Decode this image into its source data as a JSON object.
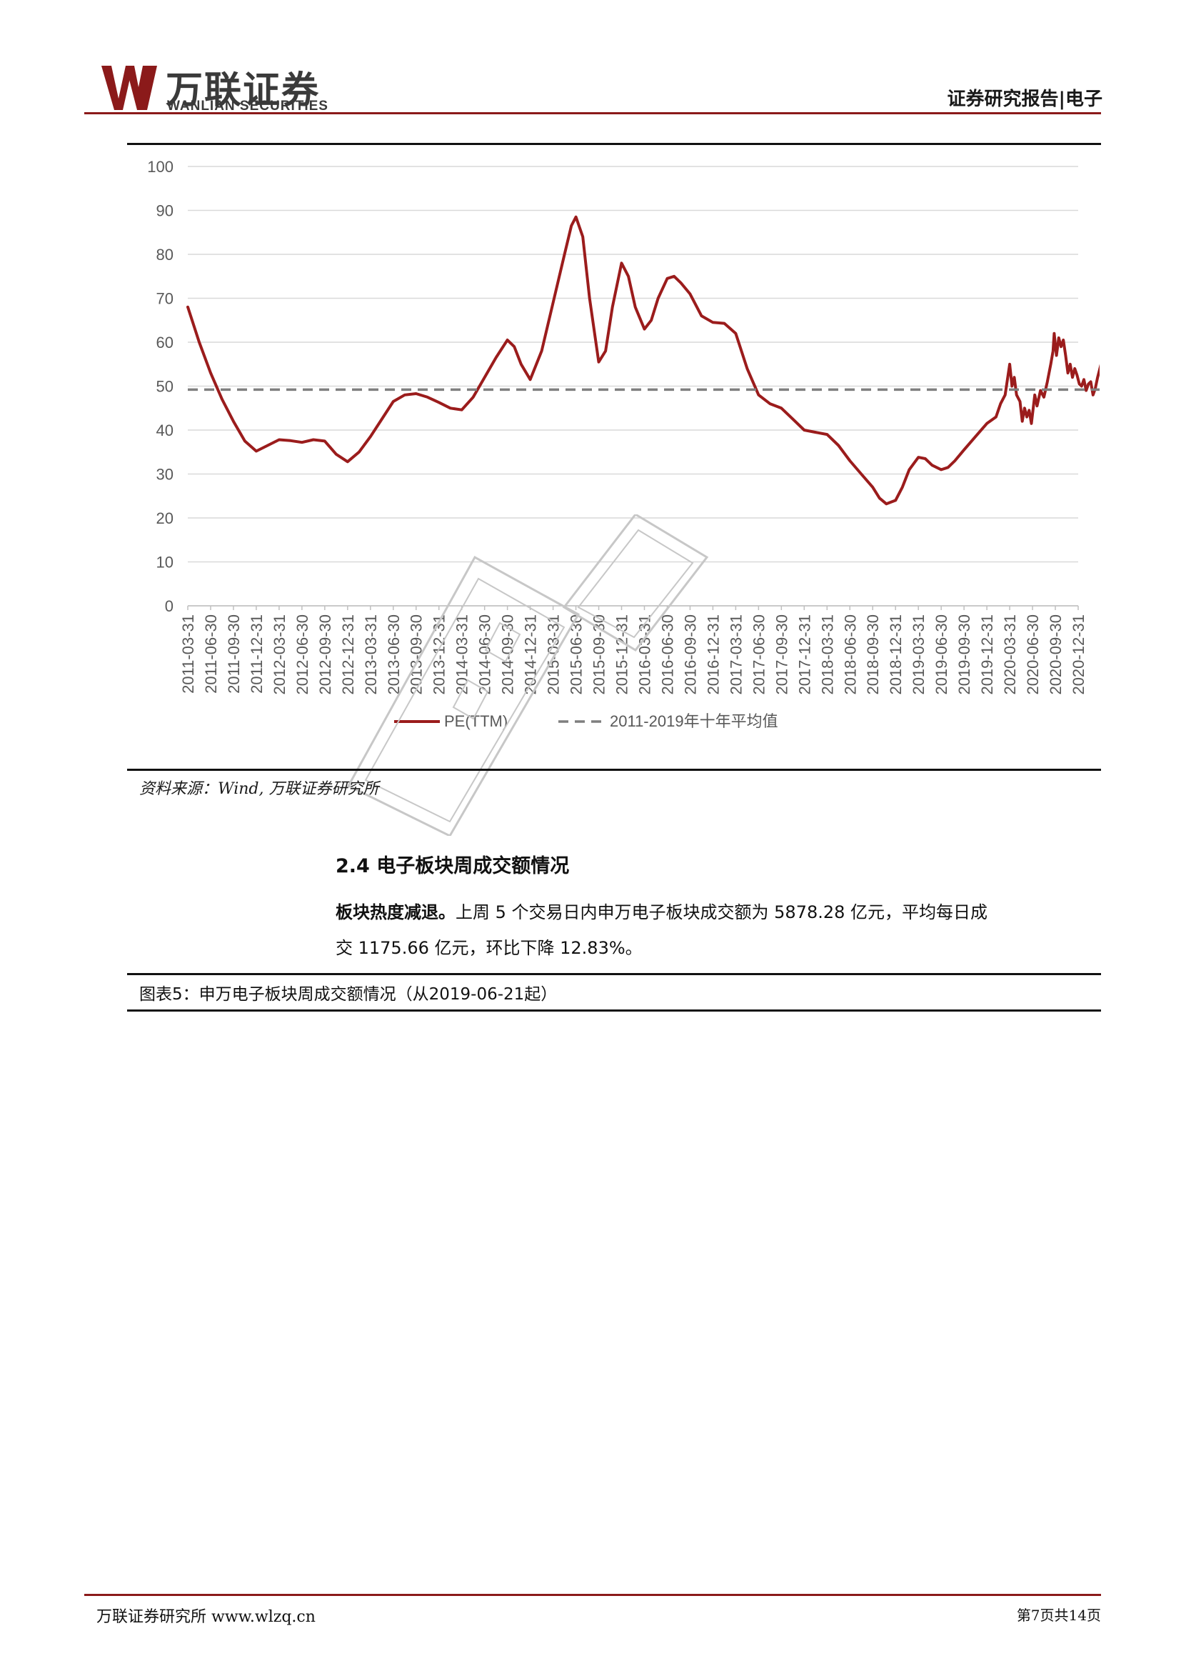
{
  "header": {
    "logo_cn": "万联证券",
    "logo_en": "WANLIAN SECURITIES",
    "report_tag": "证券研究报告|电子",
    "accent_color": "#8b1a1a"
  },
  "chart_data": {
    "type": "line",
    "title": "",
    "xlabel": "",
    "ylabel": "",
    "ylim": [
      0,
      100
    ],
    "yticks": [
      0,
      10,
      20,
      30,
      40,
      50,
      60,
      70,
      80,
      90,
      100
    ],
    "grid": true,
    "legend_position": "bottom",
    "x_tick_labels": [
      "2011-03-31",
      "2011-06-30",
      "2011-09-30",
      "2011-12-31",
      "2012-03-31",
      "2012-06-30",
      "2012-09-30",
      "2012-12-31",
      "2013-03-31",
      "2013-06-30",
      "2013-09-30",
      "2013-12-31",
      "2014-03-31",
      "2014-06-30",
      "2014-09-30",
      "2014-12-31",
      "2015-03-31",
      "2015-06-30",
      "2015-09-30",
      "2015-12-31",
      "2016-03-31",
      "2016-06-30",
      "2016-09-30",
      "2016-12-31",
      "2017-03-31",
      "2017-06-30",
      "2017-09-30",
      "2017-12-31",
      "2018-03-31",
      "2018-06-30",
      "2018-09-30",
      "2018-12-31",
      "2019-03-31",
      "2019-06-30",
      "2019-09-30",
      "2019-12-31",
      "2020-03-31",
      "2020-06-30",
      "2020-09-30",
      "2020-12-31"
    ],
    "series": [
      {
        "name": "PE(TTM)",
        "style": "solid",
        "color": "#9b1c1c",
        "points": [
          [
            0,
            68
          ],
          [
            0.5,
            60
          ],
          [
            1,
            53
          ],
          [
            1.5,
            47
          ],
          [
            2,
            42
          ],
          [
            2.5,
            37.5
          ],
          [
            3,
            35.2
          ],
          [
            3.5,
            36.5
          ],
          [
            4,
            37.8
          ],
          [
            4.5,
            37.6
          ],
          [
            5,
            37.2
          ],
          [
            5.5,
            37.8
          ],
          [
            6,
            37.5
          ],
          [
            6.5,
            34.5
          ],
          [
            7,
            32.8
          ],
          [
            7.5,
            35
          ],
          [
            8,
            38.5
          ],
          [
            8.5,
            42.5
          ],
          [
            9,
            46.5
          ],
          [
            9.5,
            48
          ],
          [
            10,
            48.3
          ],
          [
            10.5,
            47.5
          ],
          [
            11,
            46.3
          ],
          [
            11.5,
            45
          ],
          [
            12,
            44.6
          ],
          [
            12.5,
            47.5
          ],
          [
            13,
            52
          ],
          [
            13.5,
            56.5
          ],
          [
            14,
            60.5
          ],
          [
            14.3,
            59
          ],
          [
            14.6,
            55
          ],
          [
            15,
            51.5
          ],
          [
            15.5,
            58
          ],
          [
            16,
            69
          ],
          [
            16.5,
            80
          ],
          [
            16.8,
            86.5
          ],
          [
            17,
            88.5
          ],
          [
            17.3,
            84
          ],
          [
            17.6,
            70
          ],
          [
            18,
            55.5
          ],
          [
            18.3,
            58
          ],
          [
            18.6,
            68
          ],
          [
            19,
            78
          ],
          [
            19.3,
            75
          ],
          [
            19.6,
            68
          ],
          [
            20,
            63
          ],
          [
            20.3,
            65
          ],
          [
            20.6,
            70
          ],
          [
            21,
            74.5
          ],
          [
            21.3,
            75
          ],
          [
            21.6,
            73.5
          ],
          [
            22,
            71
          ],
          [
            22.5,
            66
          ],
          [
            23,
            64.5
          ],
          [
            23.5,
            64.3
          ],
          [
            24,
            62
          ],
          [
            24.5,
            54
          ],
          [
            25,
            48
          ],
          [
            25.5,
            46
          ],
          [
            26,
            45
          ],
          [
            26.5,
            42.5
          ],
          [
            27,
            40
          ],
          [
            27.5,
            39.5
          ],
          [
            28,
            39
          ],
          [
            28.5,
            36.5
          ],
          [
            29,
            33
          ],
          [
            29.5,
            30
          ],
          [
            30,
            27
          ],
          [
            30.3,
            24.5
          ],
          [
            30.6,
            23.2
          ],
          [
            31,
            24
          ],
          [
            31.3,
            27
          ],
          [
            31.6,
            31
          ],
          [
            32,
            33.8
          ],
          [
            32.3,
            33.5
          ],
          [
            32.6,
            32
          ],
          [
            33,
            31
          ],
          [
            33.3,
            31.5
          ],
          [
            33.6,
            33
          ],
          [
            34,
            35.5
          ],
          [
            34.5,
            38.5
          ],
          [
            35,
            41.5
          ],
          [
            35.4,
            43
          ],
          [
            35.6,
            46
          ],
          [
            35.8,
            48
          ],
          [
            36,
            55
          ],
          [
            36.1,
            50
          ],
          [
            36.2,
            52
          ],
          [
            36.3,
            48
          ],
          [
            36.45,
            46.5
          ],
          [
            36.55,
            42
          ],
          [
            36.65,
            45
          ],
          [
            36.75,
            43
          ],
          [
            36.85,
            44.5
          ],
          [
            36.95,
            41.5
          ],
          [
            37.1,
            48
          ],
          [
            37.2,
            45.5
          ],
          [
            37.35,
            49
          ],
          [
            37.5,
            47.5
          ],
          [
            37.65,
            51
          ],
          [
            37.8,
            55
          ],
          [
            37.9,
            58
          ],
          [
            37.95,
            62
          ],
          [
            38.05,
            57
          ],
          [
            38.15,
            61
          ],
          [
            38.25,
            59
          ],
          [
            38.35,
            60.5
          ],
          [
            38.45,
            57
          ],
          [
            38.55,
            53
          ],
          [
            38.65,
            55
          ],
          [
            38.75,
            52
          ],
          [
            38.85,
            54
          ],
          [
            38.95,
            52.5
          ],
          [
            39.05,
            50.5
          ],
          [
            39.15,
            50
          ],
          [
            39.25,
            51.5
          ],
          [
            39.35,
            49
          ],
          [
            39.45,
            50.5
          ],
          [
            39.55,
            51
          ],
          [
            39.65,
            48
          ],
          [
            39.75,
            49.5
          ],
          [
            39.85,
            52
          ],
          [
            40,
            55
          ]
        ]
      },
      {
        "name": "2011-2019年十年平均值",
        "style": "dashed",
        "color": "#7f7f7f",
        "points": [
          [
            0,
            49.2
          ],
          [
            40,
            49.2
          ]
        ]
      }
    ]
  },
  "watermark_label": "watermark",
  "source": "资料来源：Wind, 万联证券研究所",
  "section": {
    "title": "2.4 电子板块周成交额情况",
    "para_bold": "板块热度减退。",
    "para_line1": "上周 5 个交易日内申万电子板块成交额为 5878.28 亿元，平均每日成",
    "para_line2": "交 1175.66 亿元，环比下降 12.83%。"
  },
  "figure_caption": "图表5：申万电子板块周成交额情况（从2019-06-21起）",
  "footer": {
    "left": "万联证券研究所 www.wlzq.cn",
    "right": "第7页共14页"
  }
}
